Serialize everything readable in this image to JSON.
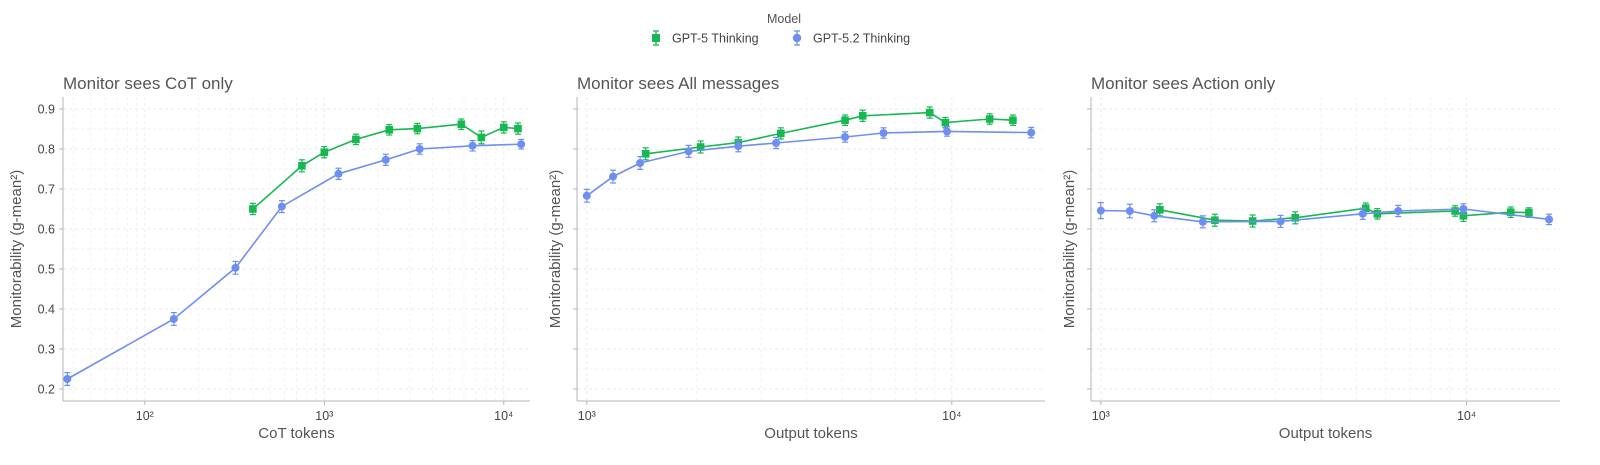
{
  "legend": {
    "title": "Model",
    "entries": [
      {
        "label": "GPT-5 Thinking",
        "color": "#17b852"
      },
      {
        "label": "GPT-5.2 Thinking",
        "color": "#6f8ff0"
      }
    ]
  },
  "chart_data": [
    {
      "type": "line",
      "title": "Monitor sees CoT only",
      "xlabel": "CoT tokens",
      "ylabel": "Monitorability (g-mean²)",
      "xscale": "log",
      "xlim": [
        35,
        14000
      ],
      "ylim": [
        0.17,
        0.93
      ],
      "xticks": [
        {
          "v": 100,
          "label": "10²"
        },
        {
          "v": 1000,
          "label": "10³"
        },
        {
          "v": 10000,
          "label": "10⁴"
        }
      ],
      "yticks": [
        0.2,
        0.3,
        0.4,
        0.5,
        0.6,
        0.7,
        0.8,
        0.9
      ],
      "ytick_labels": true,
      "grid": true,
      "series": [
        {
          "name": "GPT-5 Thinking",
          "marker": "square",
          "x": [
            400,
            750,
            1000,
            1500,
            2300,
            3300,
            5800,
            7500,
            10000,
            12000
          ],
          "y": [
            0.65,
            0.758,
            0.792,
            0.824,
            0.848,
            0.851,
            0.862,
            0.829,
            0.854,
            0.851
          ],
          "err": [
            0.014,
            0.015,
            0.014,
            0.013,
            0.013,
            0.013,
            0.013,
            0.016,
            0.014,
            0.014
          ]
        },
        {
          "name": "GPT-5.2 Thinking",
          "marker": "circle",
          "x": [
            37,
            145,
            320,
            580,
            1200,
            2200,
            3400,
            6700,
            12500
          ],
          "y": [
            0.225,
            0.375,
            0.503,
            0.656,
            0.738,
            0.773,
            0.8,
            0.808,
            0.812
          ],
          "err": [
            0.016,
            0.016,
            0.016,
            0.015,
            0.014,
            0.014,
            0.013,
            0.013,
            0.012
          ]
        }
      ]
    },
    {
      "type": "line",
      "title": "Monitor sees All messages",
      "xlabel": "Output tokens",
      "ylabel": "Monitorability (g-mean²)",
      "xscale": "log",
      "xlim": [
        940,
        18000
      ],
      "ylim": [
        0.17,
        0.93
      ],
      "xticks": [
        {
          "v": 1000,
          "label": "10³"
        },
        {
          "v": 10000,
          "label": "10⁴"
        }
      ],
      "yticks": [
        0.2,
        0.3,
        0.4,
        0.5,
        0.6,
        0.7,
        0.8,
        0.9
      ],
      "ytick_labels": false,
      "grid": true,
      "series": [
        {
          "name": "GPT-5 Thinking",
          "marker": "square",
          "x": [
            1450,
            2050,
            2600,
            3400,
            5100,
            5700,
            8700,
            9600,
            12700,
            14700
          ],
          "y": [
            0.788,
            0.805,
            0.816,
            0.839,
            0.872,
            0.883,
            0.891,
            0.866,
            0.875,
            0.872
          ],
          "err": [
            0.015,
            0.015,
            0.014,
            0.014,
            0.013,
            0.014,
            0.014,
            0.013,
            0.013,
            0.013
          ]
        },
        {
          "name": "GPT-5.2 Thinking",
          "marker": "circle",
          "x": [
            1000,
            1180,
            1400,
            1900,
            2600,
            3300,
            5100,
            6500,
            9700,
            16500
          ],
          "y": [
            0.683,
            0.731,
            0.765,
            0.794,
            0.807,
            0.815,
            0.83,
            0.84,
            0.844,
            0.841
          ],
          "err": [
            0.016,
            0.016,
            0.016,
            0.015,
            0.014,
            0.014,
            0.013,
            0.013,
            0.012,
            0.013
          ]
        }
      ]
    },
    {
      "type": "line",
      "title": "Monitor sees Action only",
      "xlabel": "Output tokens",
      "ylabel": "Monitorability (g-mean²)",
      "xscale": "log",
      "xlim": [
        940,
        18000
      ],
      "ylim": [
        0.17,
        0.93
      ],
      "xticks": [
        {
          "v": 1000,
          "label": "10³"
        },
        {
          "v": 10000,
          "label": "10⁴"
        }
      ],
      "yticks": [
        0.2,
        0.3,
        0.4,
        0.5,
        0.6,
        0.7,
        0.8,
        0.9
      ],
      "ytick_labels": false,
      "grid": true,
      "series": [
        {
          "name": "GPT-5 Thinking",
          "marker": "square",
          "x": [
            1450,
            2050,
            2600,
            3400,
            5300,
            5700,
            9300,
            9800,
            13200,
            14800
          ],
          "y": [
            0.648,
            0.622,
            0.62,
            0.628,
            0.652,
            0.638,
            0.645,
            0.633,
            0.642,
            0.641
          ],
          "err": [
            0.015,
            0.015,
            0.015,
            0.015,
            0.013,
            0.013,
            0.013,
            0.014,
            0.013,
            0.012
          ]
        },
        {
          "name": "GPT-5.2 Thinking",
          "marker": "circle",
          "x": [
            1000,
            1200,
            1400,
            1900,
            3100,
            5200,
            6500,
            9800,
            16800
          ],
          "y": [
            0.646,
            0.645,
            0.633,
            0.618,
            0.619,
            0.638,
            0.645,
            0.65,
            0.624
          ],
          "err": [
            0.02,
            0.017,
            0.015,
            0.015,
            0.015,
            0.014,
            0.014,
            0.013,
            0.013
          ]
        }
      ]
    }
  ]
}
